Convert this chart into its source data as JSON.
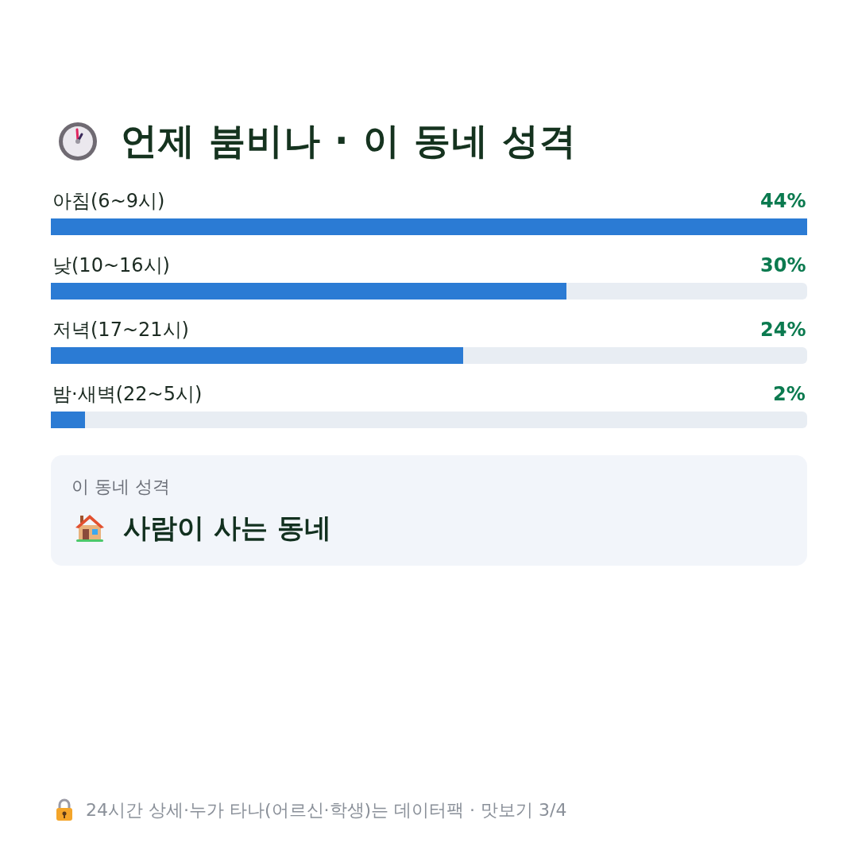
{
  "chart_data": {
    "type": "bar",
    "orientation": "horizontal",
    "title": "언제 붐비나 · 이 동네 성격",
    "categories": [
      "아침(6~9시)",
      "낮(10~16시)",
      "저녁(17~21시)",
      "밤·새벽(22~5시)"
    ],
    "values": [
      44,
      30,
      24,
      2
    ],
    "color": "#2b7bd4",
    "value_labels": [
      "44%",
      "30%",
      "24%",
      "2%"
    ],
    "xlim": [
      0,
      44
    ],
    "tick_labels": "y",
    "annotations": [
      "이 동네 성격",
      "사람이 사는 동네",
      "24시간 상세·누가 타나(어르신·학생)는 데이터팩 · 맛보기 3/4"
    ]
  }
}
